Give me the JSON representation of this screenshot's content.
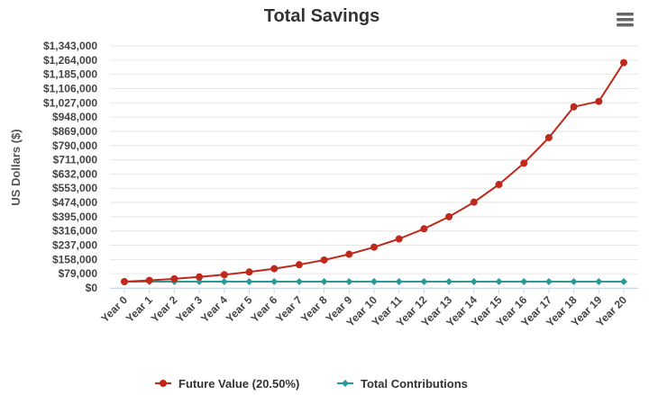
{
  "chart_data": {
    "type": "line",
    "title": "Total Savings",
    "ylabel": "US Dollars ($)",
    "xlabel": "",
    "categories": [
      "Year 0",
      "Year 1",
      "Year 2",
      "Year 3",
      "Year 4",
      "Year 5",
      "Year 6",
      "Year 7",
      "Year 8",
      "Year 9",
      "Year 10",
      "Year 11",
      "Year 12",
      "Year 13",
      "Year 14",
      "Year 15",
      "Year 16",
      "Year 17",
      "Year 18",
      "Year 19",
      "Year 20"
    ],
    "yticks": [
      "$0",
      "$79,000",
      "$158,000",
      "$237,000",
      "$316,000",
      "$395,000",
      "$474,000",
      "$553,000",
      "$632,000",
      "$711,000",
      "$790,000",
      "$869,000",
      "$948,000",
      "$1,027,000",
      "$1,106,000",
      "$1,185,000",
      "$1,264,000",
      "$1,343,000"
    ],
    "ylim": [
      0,
      1343000
    ],
    "grid": true,
    "legend_position": "bottom",
    "series": [
      {
        "name": "Future Value (20.50%)",
        "color": "#c0281b",
        "marker": "circle",
        "values": [
          35000,
          42000,
          50500,
          61000,
          73500,
          88500,
          107000,
          129000,
          155000,
          187000,
          226000,
          272000,
          328000,
          395000,
          476000,
          574000,
          692000,
          834000,
          1005000,
          1035000,
          1250000
        ]
      },
      {
        "name": "Total Contributions",
        "color": "#2a9a98",
        "marker": "diamond",
        "values": [
          35000,
          35000,
          35000,
          35000,
          35000,
          35000,
          35000,
          35000,
          35000,
          35000,
          35000,
          35000,
          35000,
          35000,
          35000,
          35000,
          35000,
          35000,
          35000,
          35000,
          35000
        ]
      }
    ]
  },
  "menu": {
    "icon": "hamburger-menu-icon"
  }
}
